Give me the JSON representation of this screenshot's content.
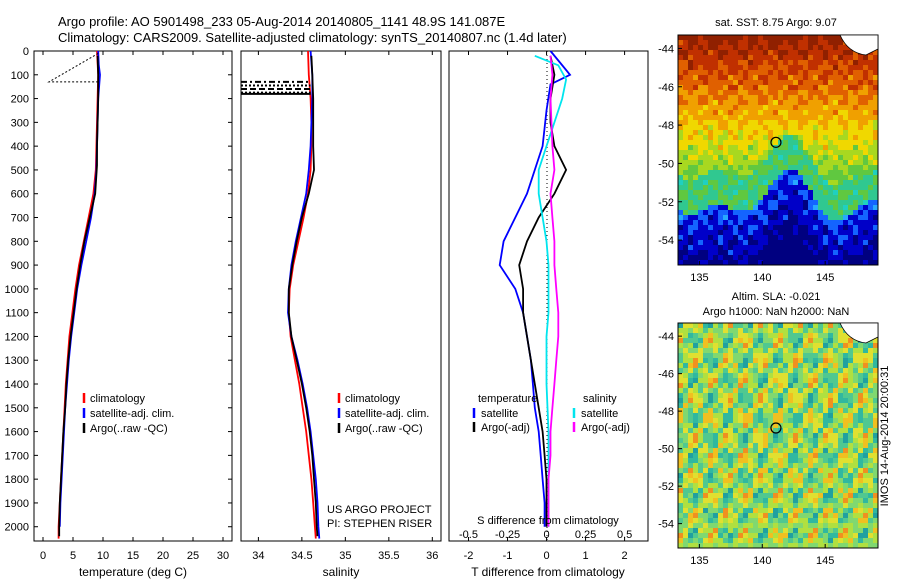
{
  "header": {
    "line1": "Argo profile: AO 5901498_233 05-Aug-2014 20140805_1141 48.9S 141.087E",
    "line2": "Climatology: CARS2009. Satellite-adjusted climatology: synTS_20140807.nc (1.4d later)"
  },
  "colors": {
    "climatology": "#ff0000",
    "satellite": "#0000ff",
    "argo": "#000000",
    "sat_salinity": "#00e5ee",
    "argo_salinity": "#ff00ff"
  },
  "chart_data": [
    {
      "id": "temperature",
      "type": "line",
      "xlabel": "temperature (deg C)",
      "xlim": [
        -1.5,
        31.5
      ],
      "ylim": [
        0,
        2060
      ],
      "y_reversed": true,
      "xticks": [
        0,
        5,
        10,
        15,
        20,
        25,
        30
      ],
      "yticks": [
        0,
        100,
        200,
        300,
        400,
        500,
        600,
        700,
        800,
        900,
        1000,
        1100,
        1200,
        1300,
        1400,
        1500,
        1600,
        1700,
        1800,
        1900,
        2000
      ],
      "legend": [
        "climatology",
        "satellite-adj. clim.",
        "Argo(..raw -QC)"
      ],
      "series": [
        {
          "name": "climatology",
          "color": "#ff0000",
          "points": [
            [
              9.0,
              0
            ],
            [
              9.2,
              100
            ],
            [
              9.1,
              200
            ],
            [
              9.0,
              300
            ],
            [
              8.9,
              400
            ],
            [
              8.8,
              500
            ],
            [
              8.4,
              600
            ],
            [
              7.6,
              700
            ],
            [
              6.8,
              800
            ],
            [
              6.0,
              900
            ],
            [
              5.4,
              1000
            ],
            [
              4.9,
              1100
            ],
            [
              4.4,
              1200
            ],
            [
              4.1,
              1300
            ],
            [
              3.8,
              1400
            ],
            [
              3.6,
              1500
            ],
            [
              3.4,
              1600
            ],
            [
              3.2,
              1700
            ],
            [
              3.0,
              1800
            ],
            [
              2.8,
              1900
            ],
            [
              2.6,
              2000
            ],
            [
              2.6,
              2050
            ]
          ]
        },
        {
          "name": "satellite-adj. clim.",
          "color": "#0000ff",
          "points": [
            [
              9.2,
              0
            ],
            [
              9.3,
              60
            ],
            [
              9.5,
              100
            ],
            [
              9.2,
              200
            ],
            [
              9.1,
              300
            ],
            [
              9.0,
              400
            ],
            [
              8.9,
              500
            ],
            [
              8.6,
              600
            ],
            [
              8.0,
              700
            ],
            [
              7.2,
              800
            ],
            [
              6.4,
              900
            ],
            [
              5.7,
              1000
            ],
            [
              5.2,
              1100
            ],
            [
              4.7,
              1200
            ],
            [
              4.3,
              1300
            ],
            [
              4.0,
              1400
            ],
            [
              3.7,
              1500
            ],
            [
              3.5,
              1600
            ],
            [
              3.3,
              1700
            ],
            [
              3.1,
              1800
            ],
            [
              2.9,
              1900
            ],
            [
              2.8,
              2000
            ]
          ]
        },
        {
          "name": "Argo(..raw -QC)",
          "color": "#000000",
          "points": [
            [
              9.1,
              20
            ],
            [
              9.2,
              100
            ],
            [
              9.2,
              200
            ],
            [
              9.1,
              300
            ],
            [
              9.0,
              400
            ],
            [
              9.0,
              480
            ],
            [
              8.7,
              600
            ],
            [
              7.8,
              700
            ],
            [
              6.9,
              800
            ],
            [
              6.2,
              900
            ],
            [
              5.6,
              1000
            ],
            [
              5.1,
              1100
            ],
            [
              4.6,
              1200
            ],
            [
              4.2,
              1300
            ],
            [
              3.9,
              1400
            ],
            [
              3.7,
              1500
            ],
            [
              3.4,
              1600
            ],
            [
              3.2,
              1700
            ],
            [
              3.0,
              1800
            ],
            [
              2.8,
              1900
            ],
            [
              2.7,
              2000
            ],
            [
              2.7,
              2040
            ]
          ]
        }
      ]
    },
    {
      "id": "salinity",
      "type": "line",
      "xlabel": "salinity",
      "xlim": [
        33.8,
        36.1
      ],
      "ylim": [
        0,
        2060
      ],
      "y_reversed": true,
      "xticks": [
        34,
        34.5,
        35,
        35.5,
        36
      ],
      "xtick_labels": [
        "34",
        "34.5",
        "35",
        "35.5",
        "36"
      ],
      "legend": [
        "climatology",
        "satellite-adj. clim.",
        "Argo(..raw -QC)"
      ],
      "annotation": [
        "US ARGO PROJECT",
        "PI: STEPHEN RISER"
      ],
      "series": [
        {
          "name": "climatology",
          "color": "#ff0000",
          "points": [
            [
              34.57,
              0
            ],
            [
              34.58,
              100
            ],
            [
              34.6,
              200
            ],
            [
              34.61,
              300
            ],
            [
              34.61,
              400
            ],
            [
              34.6,
              500
            ],
            [
              34.57,
              600
            ],
            [
              34.52,
              700
            ],
            [
              34.46,
              800
            ],
            [
              34.4,
              900
            ],
            [
              34.36,
              1000
            ],
            [
              34.35,
              1100
            ],
            [
              34.37,
              1200
            ],
            [
              34.42,
              1300
            ],
            [
              34.47,
              1400
            ],
            [
              34.51,
              1500
            ],
            [
              34.55,
              1600
            ],
            [
              34.58,
              1700
            ],
            [
              34.61,
              1800
            ],
            [
              34.63,
              1900
            ],
            [
              34.65,
              2000
            ],
            [
              34.66,
              2050
            ]
          ]
        },
        {
          "name": "satellite-adj. clim.",
          "color": "#0000ff",
          "points": [
            [
              34.6,
              0
            ],
            [
              34.62,
              100
            ],
            [
              34.62,
              200
            ],
            [
              34.61,
              300
            ],
            [
              34.6,
              400
            ],
            [
              34.58,
              500
            ],
            [
              34.55,
              600
            ],
            [
              34.49,
              700
            ],
            [
              34.43,
              800
            ],
            [
              34.38,
              900
            ],
            [
              34.35,
              1000
            ],
            [
              34.34,
              1100
            ],
            [
              34.38,
              1200
            ],
            [
              34.45,
              1300
            ],
            [
              34.51,
              1400
            ],
            [
              34.56,
              1500
            ],
            [
              34.6,
              1600
            ],
            [
              34.63,
              1700
            ],
            [
              34.66,
              1800
            ],
            [
              34.68,
              1900
            ],
            [
              34.69,
              2000
            ],
            [
              34.7,
              2050
            ]
          ]
        },
        {
          "name": "Argo(..raw -QC)",
          "color": "#000000",
          "points": [
            [
              34.61,
              20
            ],
            [
              34.62,
              100
            ],
            [
              34.63,
              200
            ],
            [
              34.63,
              300
            ],
            [
              34.63,
              400
            ],
            [
              34.64,
              500
            ],
            [
              34.58,
              600
            ],
            [
              34.5,
              700
            ],
            [
              34.44,
              800
            ],
            [
              34.39,
              900
            ],
            [
              34.35,
              1000
            ],
            [
              34.35,
              1100
            ],
            [
              34.38,
              1200
            ],
            [
              34.44,
              1300
            ],
            [
              34.5,
              1400
            ],
            [
              34.55,
              1500
            ],
            [
              34.59,
              1600
            ],
            [
              34.62,
              1700
            ],
            [
              34.64,
              1800
            ],
            [
              34.66,
              1900
            ],
            [
              34.67,
              2000
            ],
            [
              34.68,
              2040
            ]
          ]
        }
      ]
    },
    {
      "id": "difference",
      "type": "line",
      "xlabel": "T difference from climatology",
      "top_label": "S difference from climatology",
      "xlim": [
        -2.5,
        2.6
      ],
      "ylim": [
        0,
        2060
      ],
      "y_reversed": true,
      "xticks": [
        -2,
        -1,
        0,
        1,
        2
      ],
      "s_ticks": [
        "-0.5",
        "-0.25",
        "0",
        "0.25",
        "0.5"
      ],
      "legend_headers": [
        "temperature",
        "salinity"
      ],
      "legend": [
        "satellite",
        "Argo(-adj)",
        "satellite",
        "Argo(-adj)"
      ],
      "series": [
        {
          "name": "satellite",
          "color": "#0000ff",
          "points": [
            [
              0.1,
              0
            ],
            [
              0.5,
              80
            ],
            [
              0.6,
              100
            ],
            [
              0.1,
              140
            ],
            [
              0.0,
              250
            ],
            [
              -0.1,
              400
            ],
            [
              -0.3,
              500
            ],
            [
              -0.5,
              600
            ],
            [
              -0.8,
              700
            ],
            [
              -1.1,
              800
            ],
            [
              -1.2,
              900
            ],
            [
              -0.8,
              1000
            ],
            [
              -0.6,
              1100
            ],
            [
              -0.5,
              1200
            ],
            [
              -0.4,
              1300
            ],
            [
              -0.35,
              1400
            ],
            [
              -0.3,
              1500
            ],
            [
              -0.2,
              1600
            ],
            [
              -0.15,
              1700
            ],
            [
              -0.1,
              1800
            ],
            [
              -0.05,
              1900
            ],
            [
              -0.05,
              2000
            ]
          ]
        },
        {
          "name": "Argo(-adj)",
          "color": "#000000",
          "points": [
            [
              0.1,
              20
            ],
            [
              0.2,
              100
            ],
            [
              0.1,
              200
            ],
            [
              0.1,
              300
            ],
            [
              0.2,
              400
            ],
            [
              0.5,
              500
            ],
            [
              0.2,
              600
            ],
            [
              -0.2,
              700
            ],
            [
              -0.5,
              800
            ],
            [
              -0.7,
              900
            ],
            [
              -0.6,
              1000
            ],
            [
              -0.6,
              1100
            ],
            [
              -0.5,
              1200
            ],
            [
              -0.4,
              1300
            ],
            [
              -0.3,
              1400
            ],
            [
              -0.2,
              1500
            ],
            [
              -0.1,
              1600
            ],
            [
              -0.05,
              1700
            ],
            [
              0.0,
              1800
            ],
            [
              0.0,
              1900
            ],
            [
              0.0,
              2000
            ]
          ]
        },
        {
          "name": "satellite",
          "color": "#00e5ee",
          "points": [
            [
              -0.3,
              20
            ],
            [
              0.3,
              60
            ],
            [
              0.5,
              120
            ],
            [
              0.4,
              200
            ],
            [
              0.2,
              300
            ],
            [
              0.0,
              400
            ],
            [
              -0.2,
              500
            ],
            [
              -0.2,
              600
            ],
            [
              -0.1,
              700
            ],
            [
              0.0,
              800
            ],
            [
              0.05,
              900
            ],
            [
              0.05,
              1100
            ],
            [
              0.0,
              1200
            ],
            [
              0.0,
              1400
            ],
            [
              0.05,
              1600
            ],
            [
              0.05,
              1800
            ],
            [
              0.05,
              2000
            ]
          ]
        },
        {
          "name": "Argo(-adj)",
          "color": "#ff00ff",
          "points": [
            [
              0.1,
              20
            ],
            [
              0.15,
              100
            ],
            [
              0.1,
              200
            ],
            [
              0.15,
              400
            ],
            [
              0.2,
              500
            ],
            [
              0.1,
              600
            ],
            [
              0.15,
              700
            ],
            [
              0.2,
              800
            ],
            [
              0.2,
              900
            ],
            [
              0.25,
              1000
            ],
            [
              0.3,
              1100
            ],
            [
              0.3,
              1200
            ],
            [
              0.25,
              1300
            ],
            [
              0.2,
              1400
            ],
            [
              0.15,
              1500
            ],
            [
              0.1,
              1600
            ],
            [
              0.1,
              1700
            ],
            [
              0.05,
              1800
            ],
            [
              0.05,
              1900
            ],
            [
              0.05,
              2000
            ]
          ]
        }
      ]
    },
    {
      "id": "sst_map",
      "type": "heatmap",
      "title": "sat. SST: 8.75 Argo: 9.07",
      "xticks": [
        135,
        140,
        145
      ],
      "yticks": [
        -44,
        -46,
        -48,
        -50,
        -52,
        -54
      ],
      "marker": {
        "lon": 141.087,
        "lat": -48.9
      }
    },
    {
      "id": "sla_map",
      "type": "heatmap",
      "title": "Altim. SLA: -0.021",
      "subtitle": "Argo h1000: NaN h2000: NaN",
      "side_label": "IMOS 14-Aug-2014 20:00:31",
      "xticks": [
        135,
        140,
        145
      ],
      "yticks": [
        -44,
        -46,
        -48,
        -50,
        -52,
        -54
      ],
      "marker": {
        "lon": 141.087,
        "lat": -48.9
      }
    }
  ]
}
